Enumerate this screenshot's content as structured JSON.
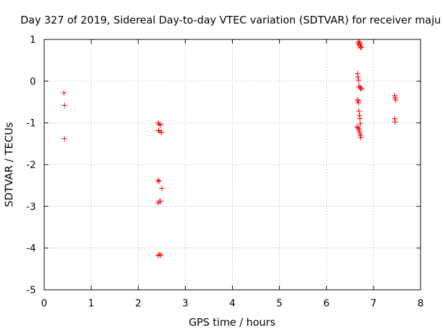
{
  "chart_data": {
    "type": "scatter",
    "title": "Day 327 of 2019, Sidereal Day-to-day VTEC variation (SDTVAR) for receiver maju",
    "xlabel": "GPS time / hours",
    "ylabel": "SDTVAR / TECUs",
    "xlim": [
      0,
      8
    ],
    "ylim": [
      -5,
      1
    ],
    "xticks": [
      "0",
      "1",
      "2",
      "3",
      "4",
      "5",
      "6",
      "7",
      "8"
    ],
    "yticks": [
      "1",
      "0",
      "-1",
      "-2",
      "-3",
      "-4",
      "-5"
    ],
    "grid": true,
    "marker": "+",
    "marker_color": "#ff0000",
    "points": [
      [
        0.42,
        -0.28
      ],
      [
        0.43,
        -0.58
      ],
      [
        0.43,
        -1.38
      ],
      [
        2.42,
        -1.0
      ],
      [
        2.45,
        -1.03
      ],
      [
        2.47,
        -1.05
      ],
      [
        2.43,
        -1.18
      ],
      [
        2.46,
        -1.2
      ],
      [
        2.49,
        -1.23
      ],
      [
        2.42,
        -2.38
      ],
      [
        2.44,
        -2.4
      ],
      [
        2.5,
        -2.57
      ],
      [
        2.42,
        -2.92
      ],
      [
        2.45,
        -2.88
      ],
      [
        2.48,
        -2.88
      ],
      [
        2.42,
        -4.18
      ],
      [
        2.45,
        -4.15
      ],
      [
        2.48,
        -4.17
      ],
      [
        6.67,
        0.92
      ],
      [
        6.68,
        0.88
      ],
      [
        6.7,
        0.95
      ],
      [
        6.71,
        0.85
      ],
      [
        6.72,
        0.9
      ],
      [
        6.73,
        0.8
      ],
      [
        6.74,
        0.82
      ],
      [
        6.66,
        0.18
      ],
      [
        6.67,
        0.1
      ],
      [
        6.68,
        0.02
      ],
      [
        6.69,
        -0.12
      ],
      [
        6.71,
        -0.15
      ],
      [
        6.73,
        -0.18
      ],
      [
        6.75,
        -0.18
      ],
      [
        6.66,
        -0.45
      ],
      [
        6.68,
        -0.48
      ],
      [
        6.68,
        -0.52
      ],
      [
        6.69,
        -0.72
      ],
      [
        6.7,
        -0.82
      ],
      [
        6.71,
        -0.9
      ],
      [
        6.72,
        -1.02
      ],
      [
        6.65,
        -1.1
      ],
      [
        6.67,
        -1.12
      ],
      [
        6.69,
        -1.15
      ],
      [
        6.7,
        -1.2
      ],
      [
        6.71,
        -1.25
      ],
      [
        6.72,
        -1.3
      ],
      [
        6.73,
        -1.35
      ],
      [
        7.45,
        -0.35
      ],
      [
        7.46,
        -0.4
      ],
      [
        7.47,
        -0.45
      ],
      [
        7.45,
        -0.9
      ],
      [
        7.46,
        -0.98
      ]
    ]
  }
}
